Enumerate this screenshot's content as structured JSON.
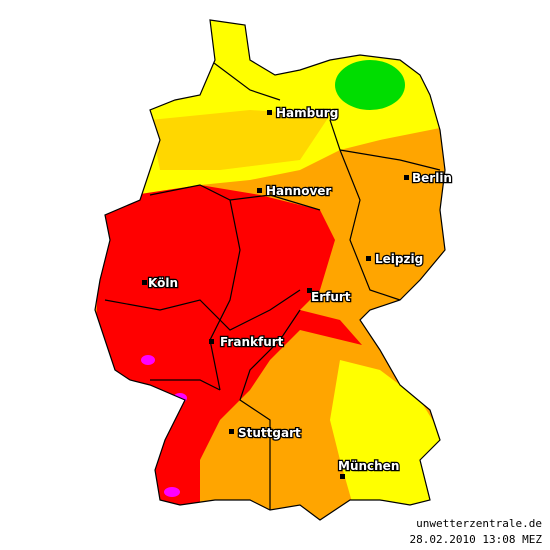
{
  "cities": [
    {
      "label": "Hamburg"
    },
    {
      "label": "Berlin"
    },
    {
      "label": "Hannover"
    },
    {
      "label": "Leipzig"
    },
    {
      "label": "Köln"
    },
    {
      "label": "Erfurt"
    },
    {
      "label": "Frankfurt"
    },
    {
      "label": "Stuttgart"
    },
    {
      "label": "München"
    }
  ],
  "footer": {
    "source": "unwetterzentrale.de",
    "timestamp": "28.02.2010 13:08 MEZ"
  }
}
